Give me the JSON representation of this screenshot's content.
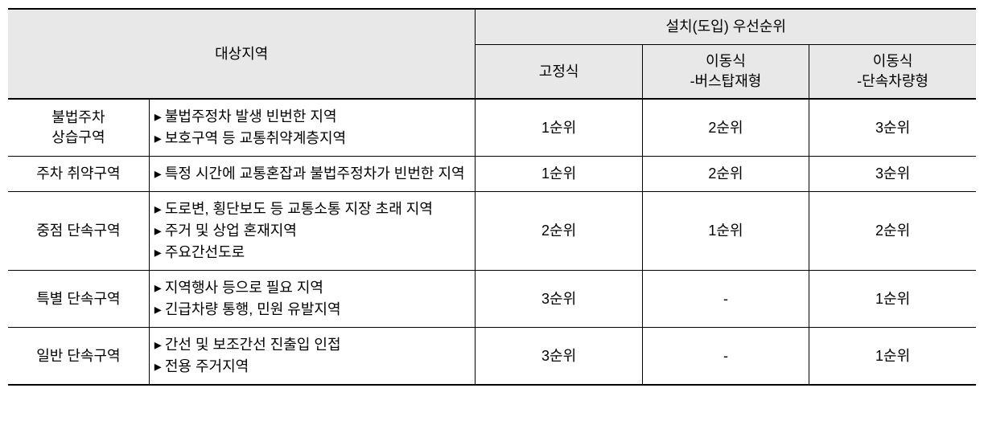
{
  "table": {
    "header": {
      "target_zone": "대상지역",
      "priority_group": "설치(도입) 우선순위",
      "fixed": "고정식",
      "mobile_bus_line1": "이동식",
      "mobile_bus_line2": "-버스탑재형",
      "mobile_vehicle_line1": "이동식",
      "mobile_vehicle_line2": "-단속차량형"
    },
    "rows": [
      {
        "zone_line1": "불법주차",
        "zone_line2": "상습구역",
        "desc": [
          "불법주정차 발생 빈번한 지역",
          "보호구역 등 교통취약계층지역"
        ],
        "fixed": "1순위",
        "mobile_bus": "2순위",
        "mobile_vehicle": "3순위"
      },
      {
        "zone_line1": "주차 취약구역",
        "zone_line2": "",
        "desc": [
          "특정 시간에 교통혼잡과 불법주정차가 빈번한 지역"
        ],
        "fixed": "1순위",
        "mobile_bus": "2순위",
        "mobile_vehicle": "3순위"
      },
      {
        "zone_line1": "중점 단속구역",
        "zone_line2": "",
        "desc": [
          "도로변, 횡단보도 등 교통소통 지장 초래 지역",
          "주거 및 상업 혼재지역",
          "주요간선도로"
        ],
        "fixed": "2순위",
        "mobile_bus": "1순위",
        "mobile_vehicle": "2순위"
      },
      {
        "zone_line1": "특별 단속구역",
        "zone_line2": "",
        "desc": [
          "지역행사 등으로 필요 지역",
          "긴급차량 통행, 민원 유발지역"
        ],
        "fixed": "3순위",
        "mobile_bus": "-",
        "mobile_vehicle": "1순위"
      },
      {
        "zone_line1": "일반 단속구역",
        "zone_line2": "",
        "desc": [
          "간선 및 보조간선 진출입 인접",
          "전용 주거지역"
        ],
        "fixed": "3순위",
        "mobile_bus": "-",
        "mobile_vehicle": "1순위"
      }
    ]
  }
}
